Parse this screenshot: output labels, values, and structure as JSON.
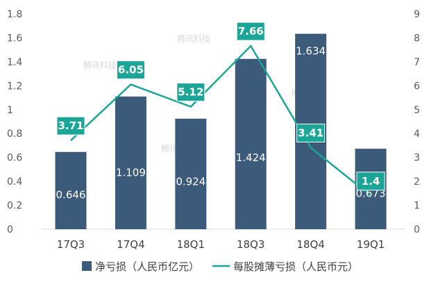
{
  "chart_data": {
    "type": "bar",
    "categories": [
      "17Q3",
      "17Q4",
      "18Q1",
      "18Q3",
      "18Q4",
      "19Q1"
    ],
    "series": [
      {
        "name": "净亏损（人民币亿元）",
        "kind": "bar",
        "axis": "left",
        "values": [
          0.646,
          1.109,
          0.924,
          1.424,
          1.634,
          0.673
        ],
        "labels": [
          "0.646",
          "1.109",
          "0.924",
          "1.424",
          "1.634",
          "0.673"
        ],
        "color": "#3c5a7a"
      },
      {
        "name": "每股摊薄亏损（人民币元）",
        "kind": "line",
        "axis": "right",
        "values": [
          3.71,
          6.05,
          5.12,
          7.66,
          3.41,
          1.4
        ],
        "labels": [
          "3.71",
          "6.05",
          "5.12",
          "7.66",
          "3.41",
          "1.4"
        ],
        "color": "#1aa596"
      }
    ],
    "left_ticks": [
      "0",
      "0.2",
      "0.4",
      "0.6",
      "0.8",
      "1",
      "1.2",
      "1.4",
      "1.6",
      "1.8"
    ],
    "right_ticks": [
      "0",
      "1",
      "2",
      "3",
      "4",
      "5",
      "6",
      "7",
      "8",
      "9"
    ],
    "ylim_left": [
      0,
      1.8
    ],
    "ylim_right": [
      0,
      9
    ],
    "legend_position": "bottom",
    "watermark": "腾讯科技",
    "grid": false
  }
}
